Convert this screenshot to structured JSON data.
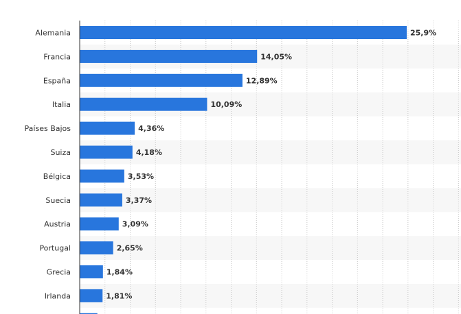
{
  "chart_data": {
    "type": "bar",
    "orientation": "horizontal",
    "title": "",
    "xlabel": "",
    "ylabel": "",
    "categories": [
      "Alemania",
      "Francia",
      "España",
      "Italia",
      "Países Bajos",
      "Suiza",
      "Bélgica",
      "Suecia",
      "Austria",
      "Portugal",
      "Grecia",
      "Irlanda",
      ""
    ],
    "values": [
      25.9,
      14.05,
      12.89,
      10.09,
      4.36,
      4.18,
      3.53,
      3.37,
      3.09,
      2.65,
      1.84,
      1.81,
      1.4
    ],
    "value_labels": [
      "25,9%",
      "14,05%",
      "12,89%",
      "10,09%",
      "4,36%",
      "4,18%",
      "3,53%",
      "3,37%",
      "3,09%",
      "2,65%",
      "1,84%",
      "1,81%",
      ""
    ],
    "xlim": [
      0,
      30
    ],
    "grid": true,
    "bar_color": "#2876dd",
    "stripe_color": "#f7f7f7",
    "grid_color": "#c8c8c8",
    "label_color": "#333333",
    "value_label_color": "#333333"
  }
}
